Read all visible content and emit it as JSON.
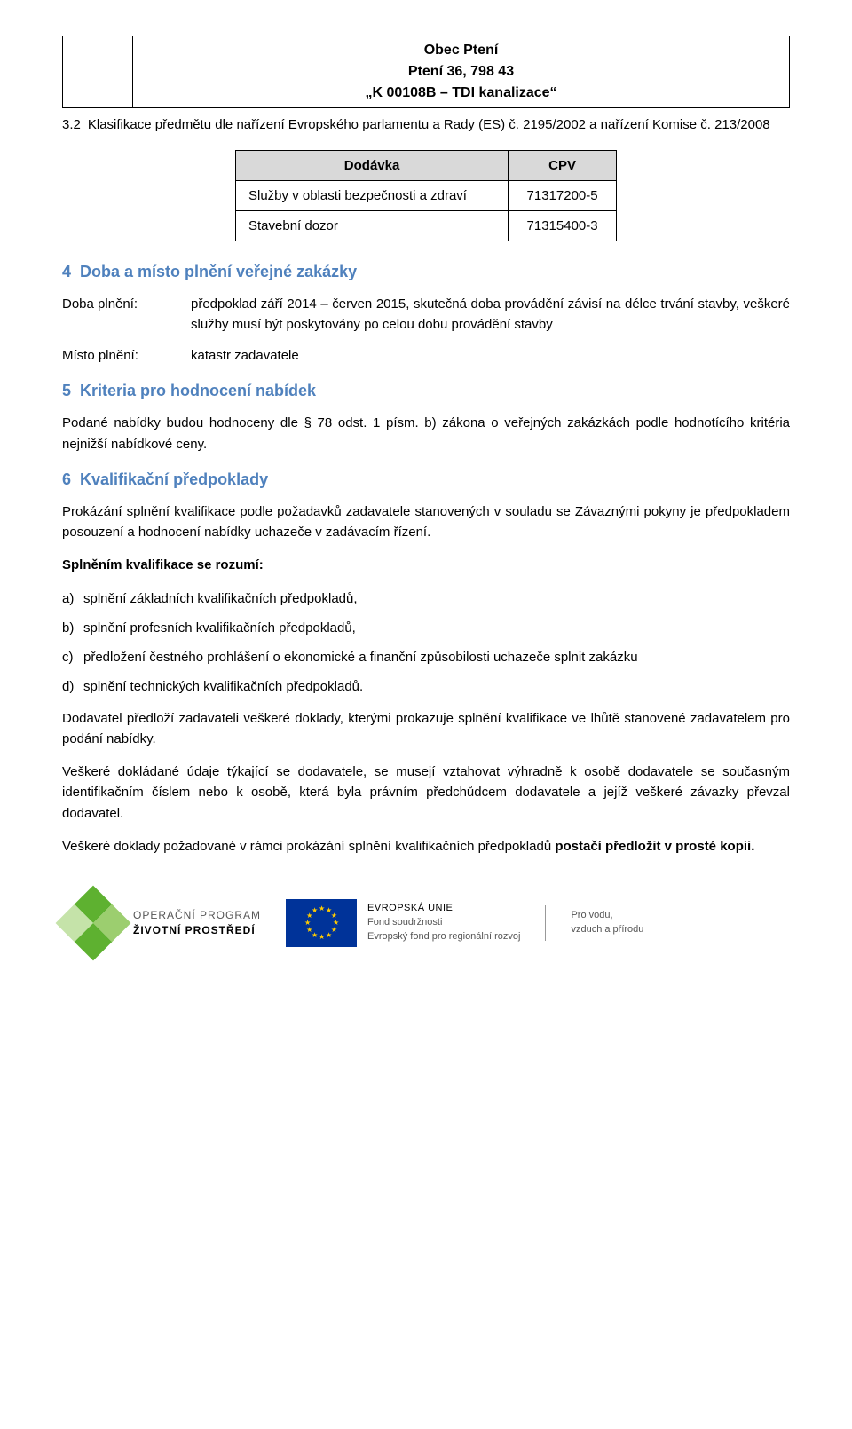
{
  "header": {
    "line1": "Obec Ptení",
    "line2": "Ptení 36, 798 43",
    "line3": "„K 00108B – TDI kanalizace“"
  },
  "section3_2": {
    "number": "3.2",
    "title": "Klasifikace předmětu dle nařízení Evropského parlamentu a Rady (ES) č. 2195/2002 a nařízení Komise č. 213/2008"
  },
  "cpv_table": {
    "headers": [
      "Dodávka",
      "CPV"
    ],
    "rows": [
      {
        "label": "Služby v oblasti bezpečnosti a zdraví",
        "code": "71317200-5"
      },
      {
        "label": "Stavební dozor",
        "code": "71315400-3"
      }
    ],
    "header_bg": "#d9d9d9",
    "border_color": "#000000"
  },
  "section4": {
    "number": "4",
    "title": "Doba a místo plnění veřejné zakázky",
    "rows": [
      {
        "label": "Doba plnění:",
        "value": "předpoklad září 2014 – červen 2015, skutečná doba provádění závisí na délce trvání stavby, veškeré služby musí být poskytovány po celou dobu provádění stavby"
      },
      {
        "label": "Místo plnění:",
        "value": "katastr zadavatele"
      }
    ]
  },
  "section5": {
    "number": "5",
    "title": "Kriteria pro hodnocení nabídek",
    "body": "Podané nabídky budou hodnoceny dle § 78 odst. 1 písm. b) zákona o veřejných zakázkách podle hodnotícího kritéria nejnižší nabídkové ceny."
  },
  "section6": {
    "number": "6",
    "title": "Kvalifikační předpoklady",
    "p1": "Prokázání splnění kvalifikace podle požadavků zadavatele stanovených v souladu se Závaznými pokyny je předpokladem posouzení a hodnocení nabídky uchazeče v zadávacím řízení.",
    "bold_line": "Splněním kvalifikace se rozumí:",
    "items": [
      {
        "mark": "a)",
        "text": "splnění základních kvalifikačních předpokladů,"
      },
      {
        "mark": "b)",
        "text": "splnění profesních kvalifikačních předpokladů,"
      },
      {
        "mark": "c)",
        "text": "předložení čestného prohlášení o ekonomické a finanční způsobilosti uchazeče splnit zakázku"
      },
      {
        "mark": "d)",
        "text": "splnění technických kvalifikačních předpokladů."
      }
    ],
    "p2": "Dodavatel předloží zadavateli veškeré doklady, kterými prokazuje splnění kvalifikace ve lhůtě stanovené zadavatelem pro podání nabídky.",
    "p3": "Veškeré dokládané údaje týkající se dodavatele, se musejí vztahovat výhradně k osobě dodavatele se současným identifikačním číslem nebo k osobě, která byla právním předchůdcem dodavatele a jejíž veškeré závazky převzal dodavatel.",
    "p4_a": "Veškeré doklady požadované v rámci prokázání splnění kvalifikačních předpokladů ",
    "p4_b": "postačí předložit v prosté kopii."
  },
  "footer": {
    "op_diamond_colors": [
      "#5eb130",
      "#9cce6f",
      "#c5e3a9",
      "#5eb130"
    ],
    "op_line1": "OPERAČNÍ PROGRAM",
    "op_line2": "ŽIVOTNÍ PROSTŘEDÍ",
    "eu_flag_bg": "#003399",
    "eu_star_color": "#ffcc00",
    "eu_line1": "EVROPSKÁ UNIE",
    "eu_line2": "Fond soudržnosti",
    "eu_line3": "Evropský fond pro regionální rozvoj",
    "right_line1": "Pro vodu,",
    "right_line2": "vzduch a přírodu"
  },
  "colors": {
    "heading": "#4f81bd",
    "text": "#000000",
    "muted": "#555555",
    "background": "#ffffff"
  }
}
